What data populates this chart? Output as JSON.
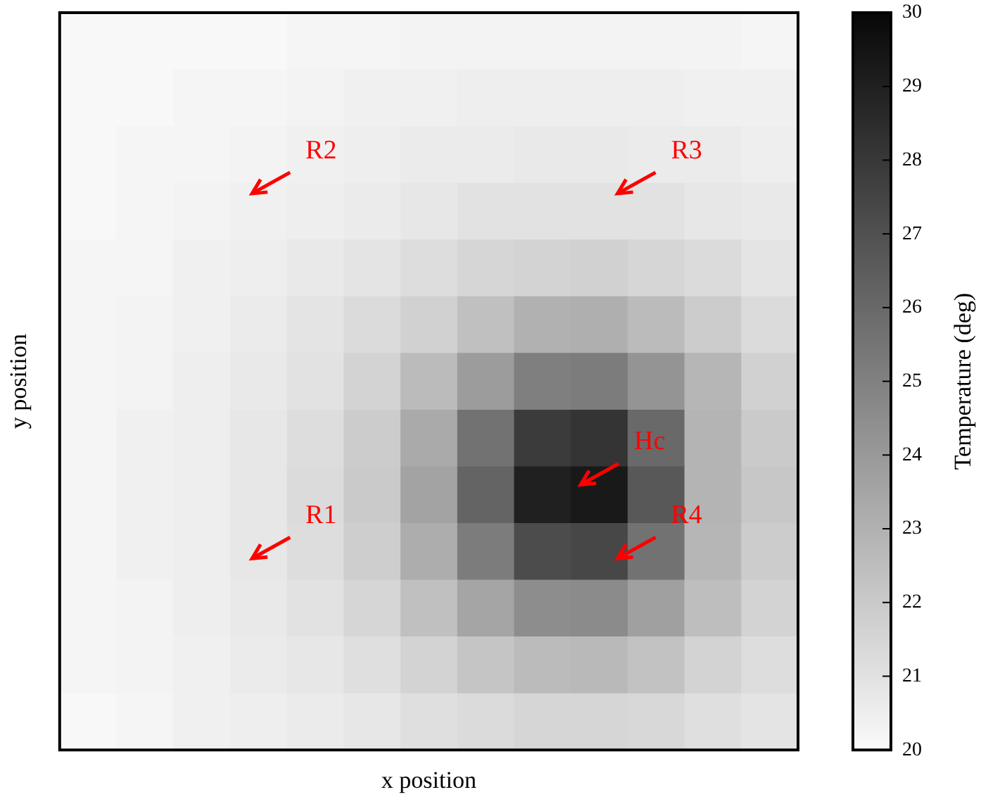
{
  "chart_data": {
    "type": "heatmap",
    "xlabel": "x position",
    "ylabel": "y position",
    "clabel": "Temperature (deg)",
    "categories": [
      null,
      null,
      null,
      null,
      null,
      null,
      null,
      null,
      null,
      null,
      null,
      null,
      null
    ],
    "y_categories": [
      null,
      null,
      null,
      null,
      null,
      null,
      null,
      null,
      null,
      null,
      null,
      null,
      null
    ],
    "cells": [
      [
        20.1,
        20.1,
        20.1,
        20.1,
        20.2,
        20.2,
        20.3,
        20.3,
        20.3,
        20.3,
        20.3,
        20.3,
        20.2
      ],
      [
        20.1,
        20.1,
        20.2,
        20.2,
        20.3,
        20.4,
        20.4,
        20.5,
        20.5,
        20.5,
        20.5,
        20.4,
        20.4
      ],
      [
        20.1,
        20.2,
        20.2,
        20.3,
        20.4,
        20.5,
        20.6,
        20.6,
        20.7,
        20.7,
        20.6,
        20.6,
        20.5
      ],
      [
        20.1,
        20.2,
        20.3,
        20.4,
        20.5,
        20.6,
        20.8,
        21.0,
        21.0,
        21.0,
        21.0,
        20.8,
        20.7
      ],
      [
        20.2,
        20.2,
        20.4,
        20.5,
        20.7,
        20.9,
        21.2,
        21.5,
        21.6,
        21.7,
        21.5,
        21.3,
        20.9
      ],
      [
        20.2,
        20.3,
        20.4,
        20.6,
        20.9,
        21.3,
        21.7,
        22.4,
        23.0,
        23.1,
        22.6,
        21.9,
        21.3
      ],
      [
        20.2,
        20.3,
        20.5,
        20.7,
        21.0,
        21.6,
        22.6,
        23.9,
        25.1,
        25.2,
        24.2,
        22.8,
        21.7
      ],
      [
        20.2,
        20.4,
        20.5,
        20.8,
        21.2,
        21.9,
        23.3,
        25.6,
        27.9,
        28.2,
        26.0,
        22.9,
        22.0
      ],
      [
        20.2,
        20.4,
        20.5,
        20.8,
        21.3,
        22.0,
        23.6,
        26.2,
        29.0,
        29.3,
        26.7,
        22.9,
        22.1
      ],
      [
        20.2,
        20.4,
        20.5,
        20.8,
        21.2,
        21.8,
        23.2,
        25.2,
        27.2,
        27.4,
        25.6,
        22.8,
        21.9
      ],
      [
        20.2,
        20.3,
        20.5,
        20.7,
        21.0,
        21.5,
        22.4,
        23.5,
        24.5,
        24.6,
        23.7,
        22.5,
        21.6
      ],
      [
        20.2,
        20.3,
        20.4,
        20.6,
        20.8,
        21.1,
        21.6,
        22.2,
        22.6,
        22.7,
        22.3,
        21.6,
        21.2
      ],
      [
        20.1,
        20.2,
        20.4,
        20.5,
        20.6,
        20.8,
        21.1,
        21.3,
        21.5,
        21.5,
        21.4,
        21.1,
        20.9
      ]
    ],
    "clim": [
      20,
      30
    ],
    "cticks": [
      20,
      21,
      22,
      23,
      24,
      25,
      26,
      27,
      28,
      29,
      30
    ],
    "annotations": [
      "R2",
      "R3",
      "Hc",
      "R1",
      "R4"
    ]
  }
}
